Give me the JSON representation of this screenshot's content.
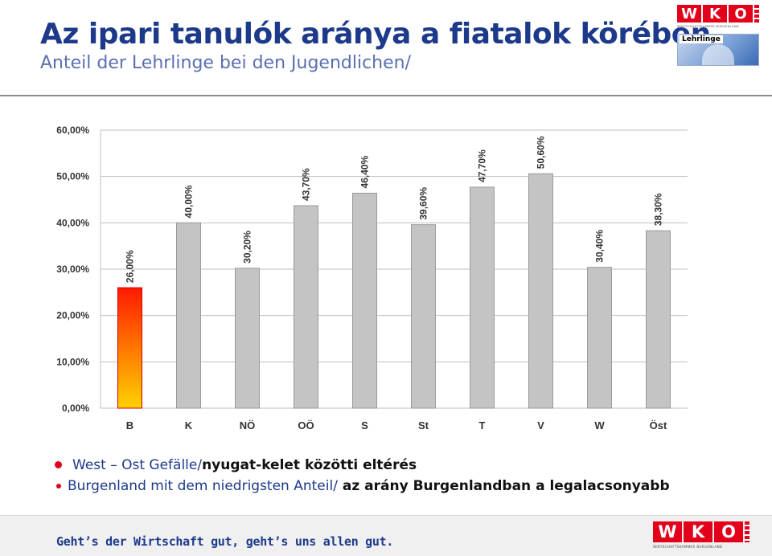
{
  "header": {
    "title": "Az ipari tanulók aránya a fiatalok körében",
    "subtitle": "Anteil der Lehrlinge bei den Jugendlichen/"
  },
  "logo": {
    "letters": [
      "W",
      "K",
      "O"
    ],
    "subline": "WIRTSCHAFTSKAMMER BURGENLAND",
    "image_label": "Lehrlinge"
  },
  "chart_data": {
    "type": "bar",
    "categories": [
      "B",
      "K",
      "NÖ",
      "OÖ",
      "S",
      "St",
      "T",
      "V",
      "W",
      "Öst"
    ],
    "values": [
      26.0,
      40.0,
      30.2,
      43.7,
      46.4,
      39.6,
      47.7,
      50.6,
      30.4,
      38.3
    ],
    "data_labels": [
      "26,00%",
      "40,00%",
      "30,20%",
      "43,70%",
      "46,40%",
      "39,60%",
      "47,70%",
      "50,60%",
      "30,40%",
      "38,30%"
    ],
    "y_ticks": [
      0,
      10,
      20,
      30,
      40,
      50,
      60
    ],
    "y_tick_labels": [
      "0,00%",
      "10,00%",
      "20,00%",
      "30,00%",
      "40,00%",
      "50,00%",
      "60,00%"
    ],
    "ylim": [
      0,
      60
    ],
    "grid": true,
    "highlight_category": "B",
    "colors": {
      "bar": "#c4c4c4",
      "bar_edge": "#9a9a9a",
      "highlight_top": "#ff1a00",
      "highlight_bottom": "#ffd200",
      "grid": "#bfbfbf",
      "text": "#333333"
    }
  },
  "bullets": {
    "line1_blue": "West – Ost Gefälle/",
    "line1_dark": "nyugat-kelet közötti eltérés",
    "line2_blue": "Burgenland mit dem niedrigsten Anteil/",
    "line2_dark": " az arány Burgenlandban a legalacsonyabb"
  },
  "footer": {
    "slogan": "Geht’s der Wirtschaft gut, geht’s uns allen gut."
  }
}
